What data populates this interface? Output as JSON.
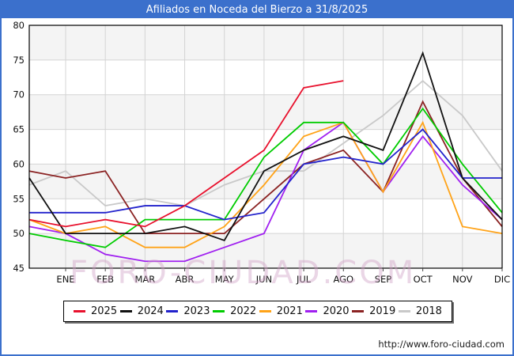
{
  "title": "Afiliados en Noceda del Bierzo a 31/8/2025",
  "watermark": "FORO-CIUDAD.COM",
  "footer_url": "http://www.foro-ciudad.com",
  "colors": {
    "title_bar": "#3b70cc",
    "frame_border": "#3b70cc",
    "grid_line": "#d4d4d4",
    "band_fill": "#f4f4f4",
    "axis_text": "#111111"
  },
  "chart_data": {
    "type": "line",
    "title": "Afiliados en Noceda del Bierzo a 31/8/2025",
    "categories": [
      "ENE",
      "FEB",
      "MAR",
      "ABR",
      "MAY",
      "JUN",
      "JUL",
      "AGO",
      "SEP",
      "OCT",
      "NOV",
      "DIC"
    ],
    "xlabel": "",
    "ylabel": "",
    "ylim": [
      45,
      80
    ],
    "y_ticks": [
      45,
      50,
      55,
      60,
      65,
      70,
      75,
      80
    ],
    "grid": true,
    "legend_position": "bottom",
    "series": [
      {
        "name": "2025",
        "color": "#e8112d",
        "start": 52,
        "values": [
          51,
          52,
          51,
          54,
          58,
          62,
          71,
          72,
          null,
          null,
          null,
          null
        ]
      },
      {
        "name": "2024",
        "color": "#111111",
        "start": 58,
        "values": [
          50,
          50,
          50,
          51,
          49,
          59,
          62,
          64,
          62,
          76,
          58,
          52
        ]
      },
      {
        "name": "2023",
        "color": "#2222cc",
        "start": 53,
        "values": [
          53,
          53,
          54,
          54,
          52,
          53,
          60,
          61,
          60,
          65,
          58,
          58
        ]
      },
      {
        "name": "2022",
        "color": "#00cc00",
        "start": 50,
        "values": [
          49,
          48,
          52,
          52,
          52,
          61,
          66,
          66,
          60,
          68,
          60,
          53
        ]
      },
      {
        "name": "2021",
        "color": "#ffa318",
        "start": 52,
        "values": [
          50,
          51,
          48,
          48,
          51,
          57,
          64,
          66,
          56,
          66,
          51,
          50
        ]
      },
      {
        "name": "2020",
        "color": "#a020f0",
        "start": 51,
        "values": [
          50,
          47,
          46,
          46,
          48,
          50,
          62,
          66,
          56,
          64,
          57,
          52
        ]
      },
      {
        "name": "2019",
        "color": "#8b2323",
        "start": 59,
        "values": [
          58,
          59,
          50,
          50,
          50,
          55,
          60,
          62,
          56,
          69,
          58,
          51
        ]
      },
      {
        "name": "2018",
        "color": "#c9c9c9",
        "start": 57,
        "values": [
          59,
          54,
          55,
          54,
          57,
          59,
          59,
          63,
          67,
          72,
          67,
          59
        ]
      }
    ]
  }
}
